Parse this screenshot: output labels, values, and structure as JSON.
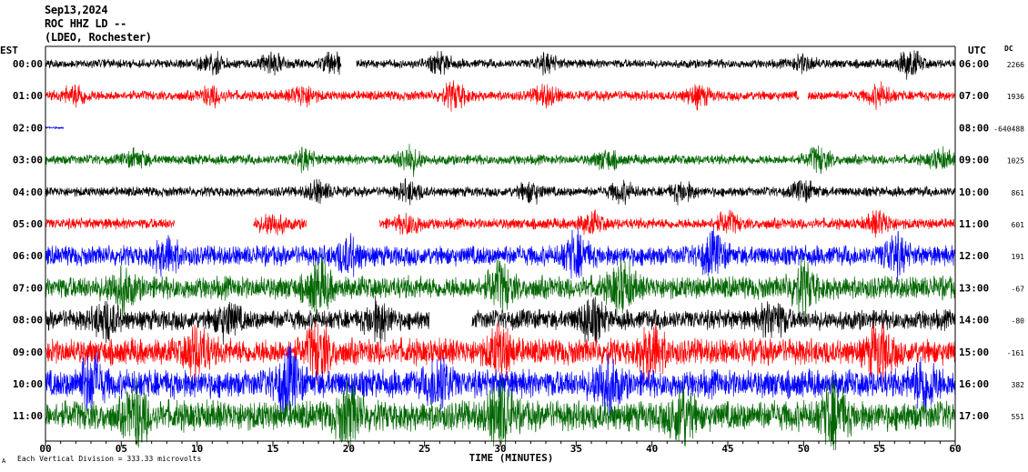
{
  "header": {
    "date": "Sep13,2024",
    "station": "ROC HHZ LD --",
    "network": "(LDEO, Rochester)"
  },
  "left_tz": "EST",
  "right_tz": "UTC",
  "dc_label": "DC",
  "footer": {
    "scale_note": "Each Vertical Division = 333.33 microvolts",
    "corner_mark": "A"
  },
  "chart_data": {
    "type": "line",
    "xlabel": "TIME (MINUTES)",
    "xlim": [
      0,
      60
    ],
    "x_ticks": [
      "00",
      "05",
      "10",
      "15",
      "20",
      "25",
      "30",
      "35",
      "40",
      "45",
      "50",
      "55",
      "60"
    ],
    "rows": [
      {
        "left": "00:00",
        "right": "06:00",
        "dc": "2266",
        "color": "#000000",
        "amp": 0.45,
        "gaps": [
          [
            19.5,
            20.5
          ]
        ],
        "bursts": [
          [
            11,
            1.8
          ],
          [
            15,
            2.2
          ],
          [
            19,
            2.0
          ],
          [
            26,
            1.8
          ],
          [
            33,
            1.6
          ],
          [
            50,
            1.6
          ],
          [
            57,
            2.8
          ]
        ]
      },
      {
        "left": "01:00",
        "right": "07:00",
        "dc": "1936",
        "color": "#ff0000",
        "amp": 0.5,
        "gaps": [
          [
            49.7,
            50.3
          ]
        ],
        "bursts": [
          [
            2,
            1.8
          ],
          [
            11,
            1.6
          ],
          [
            17,
            1.8
          ],
          [
            27,
            2.4
          ],
          [
            33,
            1.8
          ],
          [
            43,
            1.8
          ],
          [
            55,
            1.8
          ]
        ]
      },
      {
        "left": "02:00",
        "right": "08:00",
        "dc": "-640488",
        "color": "#0000ff",
        "amp": 0.1,
        "gaps": [
          [
            1.2,
            60
          ]
        ],
        "bursts": []
      },
      {
        "left": "03:00",
        "right": "09:00",
        "dc": "1025",
        "color": "#006600",
        "amp": 0.5,
        "gaps": [],
        "bursts": [
          [
            6,
            1.4
          ],
          [
            17,
            1.6
          ],
          [
            24,
            2.4
          ],
          [
            37,
            1.6
          ],
          [
            51,
            2.2
          ],
          [
            59,
            1.6
          ]
        ]
      },
      {
        "left": "04:00",
        "right": "10:00",
        "dc": "861",
        "color": "#000000",
        "amp": 0.5,
        "gaps": [],
        "bursts": [
          [
            18,
            1.8
          ],
          [
            24,
            1.8
          ],
          [
            32,
            1.8
          ],
          [
            38,
            1.6
          ],
          [
            42,
            1.6
          ],
          [
            50,
            1.6
          ]
        ]
      },
      {
        "left": "05:00",
        "right": "11:00",
        "dc": "601",
        "color": "#ff0000",
        "amp": 0.55,
        "gaps": [
          [
            8.5,
            13.7
          ],
          [
            17.2,
            22
          ]
        ],
        "bursts": [
          [
            15,
            1.8
          ],
          [
            24,
            1.6
          ],
          [
            36,
            1.6
          ],
          [
            45,
            1.6
          ],
          [
            55,
            1.8
          ]
        ]
      },
      {
        "left": "06:00",
        "right": "12:00",
        "dc": "191",
        "color": "#0000ff",
        "amp": 1.0,
        "gaps": [],
        "bursts": [
          [
            8,
            1.5
          ],
          [
            20,
            1.5
          ],
          [
            35,
            1.8
          ],
          [
            44,
            1.6
          ],
          [
            56,
            1.6
          ]
        ]
      },
      {
        "left": "07:00",
        "right": "13:00",
        "dc": "-67",
        "color": "#006600",
        "amp": 1.15,
        "gaps": [],
        "bursts": [
          [
            5,
            1.5
          ],
          [
            18,
            1.8
          ],
          [
            30,
            1.6
          ],
          [
            38,
            1.8
          ],
          [
            50,
            1.6
          ]
        ]
      },
      {
        "left": "08:00",
        "right": "14:00",
        "dc": "-80",
        "color": "#000000",
        "amp": 1.0,
        "gaps": [
          [
            25.3,
            28.1
          ]
        ],
        "bursts": [
          [
            4,
            1.6
          ],
          [
            12,
            1.5
          ],
          [
            22,
            1.6
          ],
          [
            36,
            1.8
          ],
          [
            48,
            1.6
          ]
        ]
      },
      {
        "left": "09:00",
        "right": "15:00",
        "dc": "-161",
        "color": "#ff0000",
        "amp": 1.3,
        "gaps": [],
        "bursts": [
          [
            10,
            1.6
          ],
          [
            18,
            1.8
          ],
          [
            30,
            1.6
          ],
          [
            40,
            1.8
          ],
          [
            55,
            1.6
          ]
        ]
      },
      {
        "left": "10:00",
        "right": "16:00",
        "dc": "382",
        "color": "#0000ff",
        "amp": 1.4,
        "gaps": [],
        "bursts": [
          [
            3,
            1.6
          ],
          [
            16,
            1.8
          ],
          [
            26,
            1.6
          ],
          [
            37,
            1.8
          ],
          [
            58,
            1.6
          ]
        ]
      },
      {
        "left": "11:00",
        "right": "17:00",
        "dc": "551",
        "color": "#006600",
        "amp": 1.5,
        "gaps": [],
        "bursts": [
          [
            6,
            1.6
          ],
          [
            20,
            1.6
          ],
          [
            30,
            1.8
          ],
          [
            42,
            1.6
          ],
          [
            52,
            1.8
          ]
        ]
      }
    ]
  }
}
